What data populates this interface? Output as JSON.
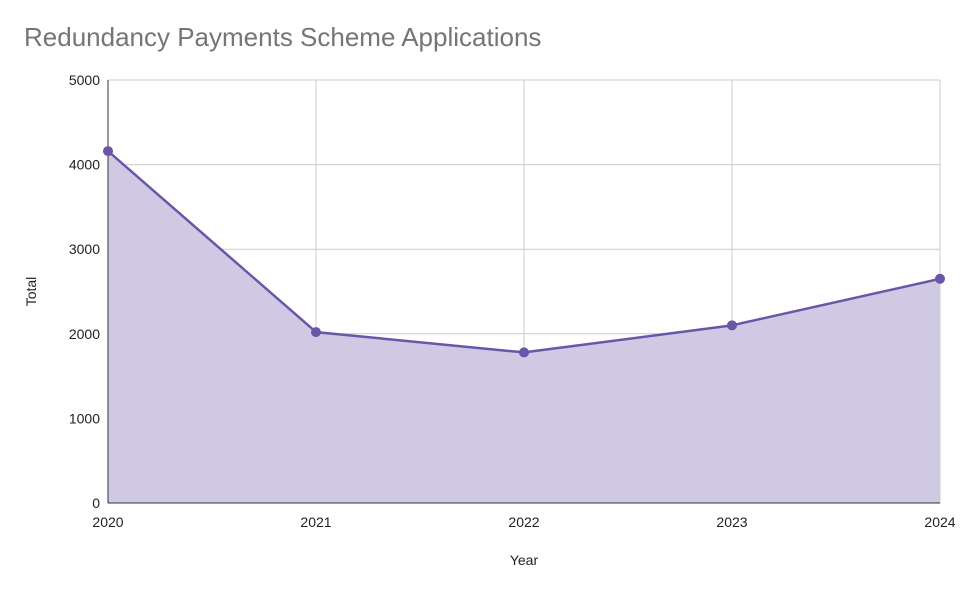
{
  "chart_data": {
    "type": "area",
    "title": "Redundancy Payments Scheme Applications",
    "xlabel": "Year",
    "ylabel": "Total",
    "categories": [
      "2020",
      "2021",
      "2022",
      "2023",
      "2024"
    ],
    "series": [
      {
        "values": [
          4160,
          2020,
          1780,
          2100,
          2650
        ],
        "color": "#6a55a8",
        "fill_color": "#d0c9e3"
      }
    ],
    "ylim": [
      0,
      5000
    ],
    "yticks": [
      "0",
      "1000",
      "2000",
      "3000",
      "4000",
      "5000"
    ],
    "grid": true,
    "legend": "none"
  }
}
